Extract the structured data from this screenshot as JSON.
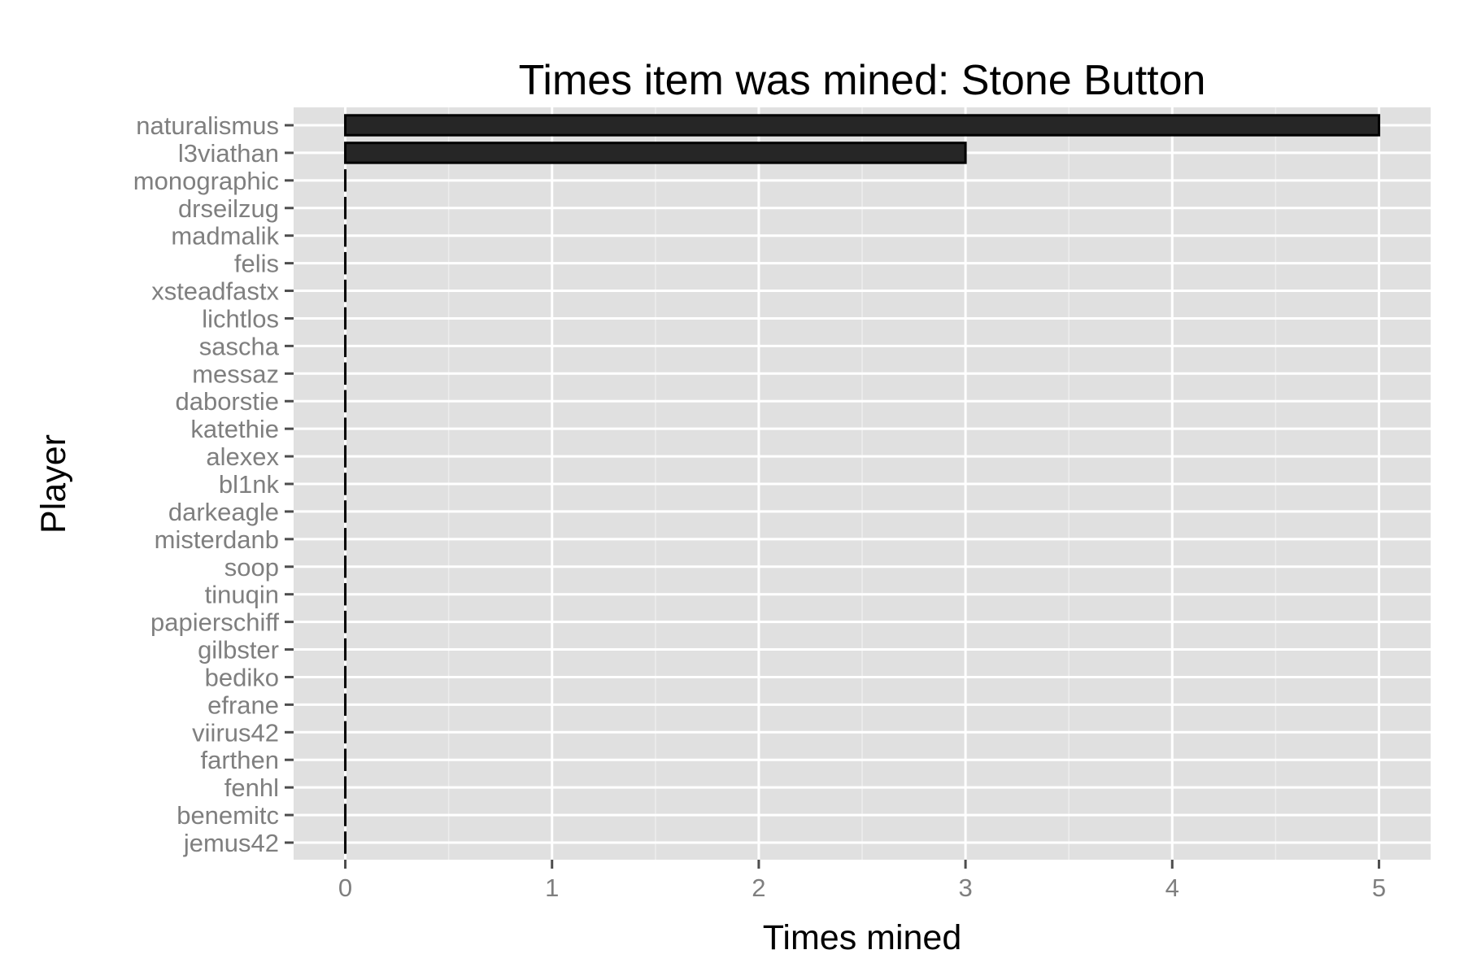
{
  "chart_data": {
    "type": "bar",
    "orientation": "horizontal",
    "title": "Times item was mined: Stone Button",
    "xlabel": "Times mined",
    "ylabel": "Player",
    "xlim": [
      -0.25,
      5.25
    ],
    "xticks": [
      "0",
      "1",
      "2",
      "3",
      "4",
      "5"
    ],
    "grid": true,
    "categories": [
      "naturalismus",
      "l3viathan",
      "monographic",
      "drseilzug",
      "madmalik",
      "felis",
      "xsteadfastx",
      "lichtlos",
      "sascha",
      "messaz",
      "daborstie",
      "katethie",
      "alexex",
      "bl1nk",
      "darkeagle",
      "misterdanb",
      "soop",
      "tinuqin",
      "papierschiff",
      "gilbster",
      "bediko",
      "efrane",
      "viirus42",
      "farthen",
      "fenhl",
      "benemitc",
      "jemus42"
    ],
    "values": [
      5,
      3,
      0,
      0,
      0,
      0,
      0,
      0,
      0,
      0,
      0,
      0,
      0,
      0,
      0,
      0,
      0,
      0,
      0,
      0,
      0,
      0,
      0,
      0,
      0,
      0,
      0
    ],
    "colors": {
      "panel": "#e0e0e0",
      "grid_major": "#ffffff",
      "grid_minor": "#ededed",
      "bar_fill": "#262626",
      "bar_stroke": "#000000",
      "tick_text": "#7f7f7f",
      "tick_mark": "#4d4d4d"
    }
  }
}
